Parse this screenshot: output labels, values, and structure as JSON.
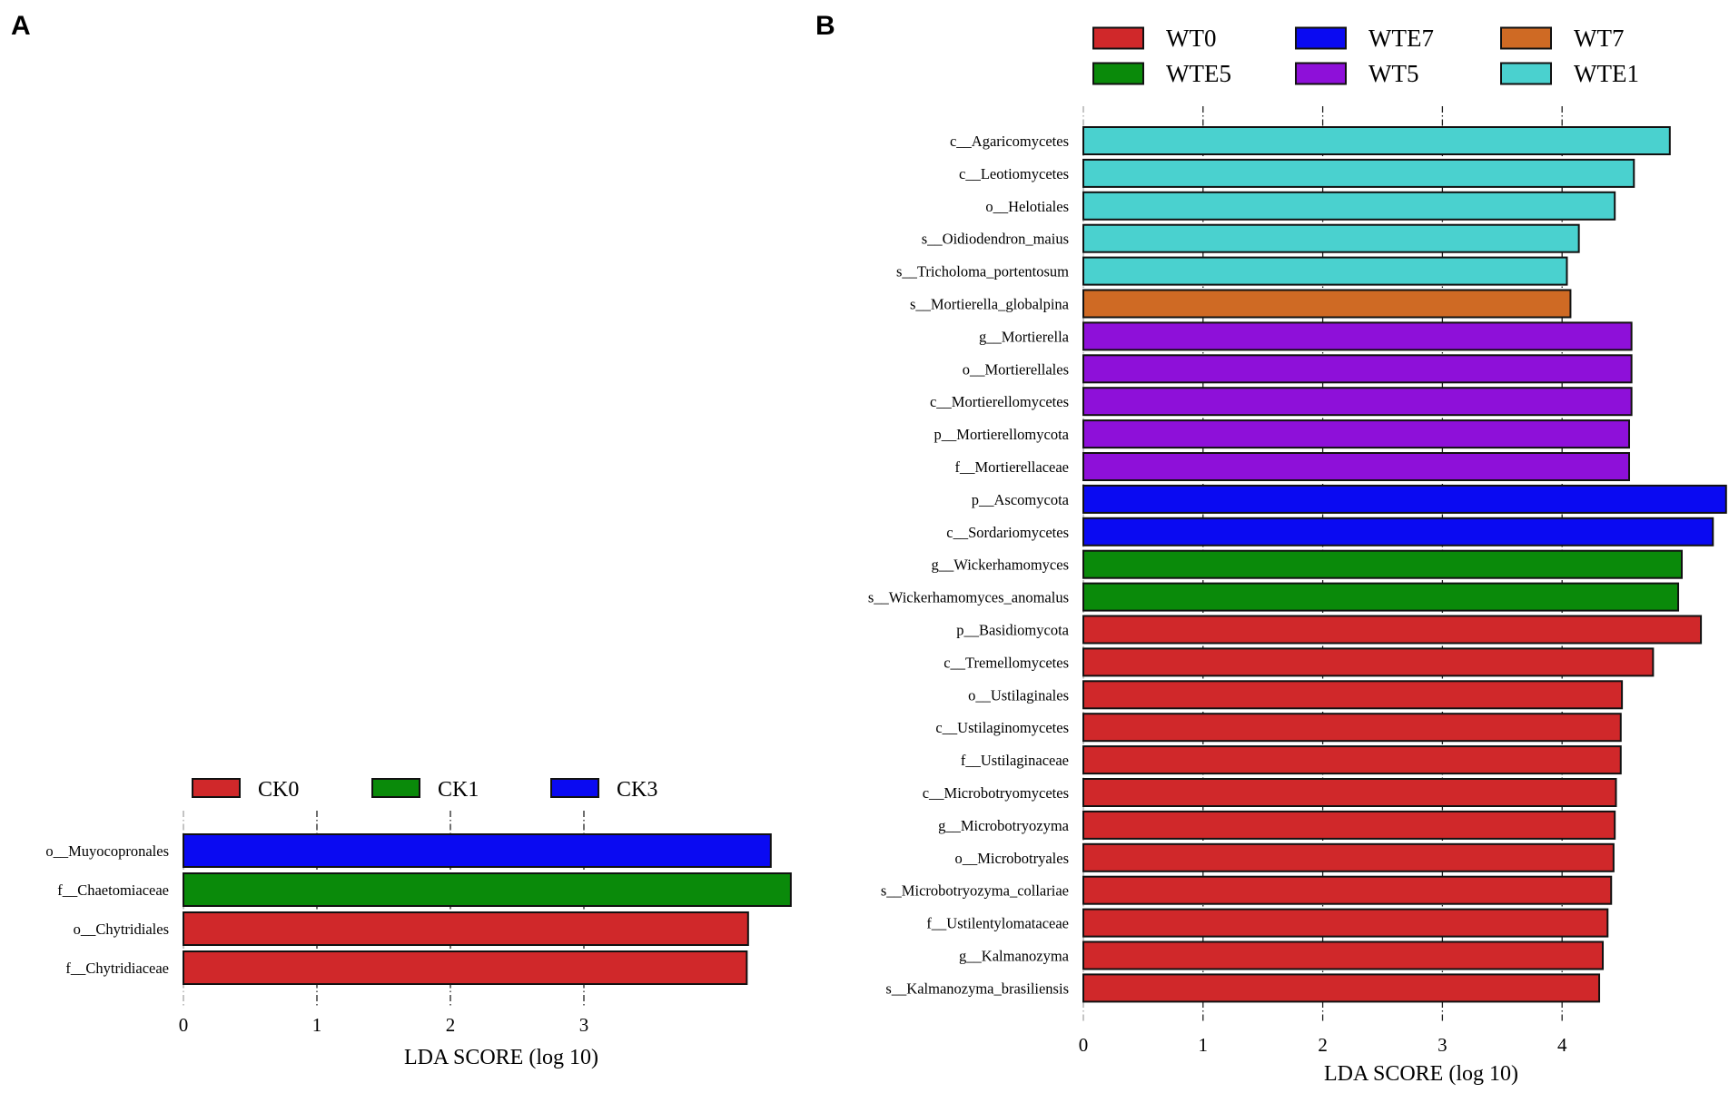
{
  "chart_data": [
    {
      "type": "bar",
      "orientation": "horizontal",
      "panel_label": "A",
      "xlabel": "LDA SCORE (log 10)",
      "x_ticks": [
        0,
        1,
        2,
        3
      ],
      "xlim": [
        0,
        4.55
      ],
      "legend": [
        {
          "name": "CK0",
          "color": "#d0282a"
        },
        {
          "name": "CK1",
          "color": "#0a8a0a"
        },
        {
          "name": "CK3",
          "color": "#0a0af2"
        }
      ],
      "bars": [
        {
          "label": "o__Muyocopronales",
          "value": 4.4,
          "group": "CK3"
        },
        {
          "label": "f__Chaetomiaceae",
          "value": 4.55,
          "group": "CK1"
        },
        {
          "label": "o__Chytridiales",
          "value": 4.23,
          "group": "CK0"
        },
        {
          "label": "f__Chytridiaceae",
          "value": 4.22,
          "group": "CK0"
        }
      ]
    },
    {
      "type": "bar",
      "orientation": "horizontal",
      "panel_label": "B",
      "xlabel": "LDA SCORE (log 10)",
      "x_ticks": [
        0,
        1,
        2,
        3,
        4
      ],
      "xlim": [
        0,
        5.37
      ],
      "legend": [
        {
          "name": "WT0",
          "color": "#d0282a"
        },
        {
          "name": "WTE7",
          "color": "#0a0af2"
        },
        {
          "name": "WT7",
          "color": "#cf6a24"
        },
        {
          "name": "WTE5",
          "color": "#0a8a0a"
        },
        {
          "name": "WT5",
          "color": "#8e10d9"
        },
        {
          "name": "WTE1",
          "color": "#4ad1cf"
        }
      ],
      "bars": [
        {
          "label": "c__Agaricomycetes",
          "value": 4.9,
          "group": "WTE1"
        },
        {
          "label": "c__Leotiomycetes",
          "value": 4.6,
          "group": "WTE1"
        },
        {
          "label": "o__Helotiales",
          "value": 4.44,
          "group": "WTE1"
        },
        {
          "label": "s__Oidiodendron_maius",
          "value": 4.14,
          "group": "WTE1"
        },
        {
          "label": "s__Tricholoma_portentosum",
          "value": 4.04,
          "group": "WTE1"
        },
        {
          "label": "s__Mortierella_globalpina",
          "value": 4.07,
          "group": "WT7"
        },
        {
          "label": "g__Mortierella",
          "value": 4.58,
          "group": "WT5"
        },
        {
          "label": "o__Mortierellales",
          "value": 4.58,
          "group": "WT5"
        },
        {
          "label": "c__Mortierellomycetes",
          "value": 4.58,
          "group": "WT5"
        },
        {
          "label": "p__Mortierellomycota",
          "value": 4.56,
          "group": "WT5"
        },
        {
          "label": "f__Mortierellaceae",
          "value": 4.56,
          "group": "WT5"
        },
        {
          "label": "p__Ascomycota",
          "value": 5.37,
          "group": "WTE7"
        },
        {
          "label": "c__Sordariomycetes",
          "value": 5.26,
          "group": "WTE7"
        },
        {
          "label": "g__Wickerhamomyces",
          "value": 5.0,
          "group": "WTE5"
        },
        {
          "label": "s__Wickerhamomyces_anomalus",
          "value": 4.97,
          "group": "WTE5"
        },
        {
          "label": "p__Basidiomycota",
          "value": 5.16,
          "group": "WT0"
        },
        {
          "label": "c__Tremellomycetes",
          "value": 4.76,
          "group": "WT0"
        },
        {
          "label": "o__Ustilaginales",
          "value": 4.5,
          "group": "WT0"
        },
        {
          "label": "c__Ustilaginomycetes",
          "value": 4.49,
          "group": "WT0"
        },
        {
          "label": "f__Ustilaginaceae",
          "value": 4.49,
          "group": "WT0"
        },
        {
          "label": "c__Microbotryomycetes",
          "value": 4.45,
          "group": "WT0"
        },
        {
          "label": "g__Microbotryozyma",
          "value": 4.44,
          "group": "WT0"
        },
        {
          "label": "o__Microbotryales",
          "value": 4.43,
          "group": "WT0"
        },
        {
          "label": "s__Microbotryozyma_collariae",
          "value": 4.41,
          "group": "WT0"
        },
        {
          "label": "f__Ustilentylomataceae",
          "value": 4.38,
          "group": "WT0"
        },
        {
          "label": "g__Kalmanozyma",
          "value": 4.34,
          "group": "WT0"
        },
        {
          "label": "s__Kalmanozyma_brasiliensis",
          "value": 4.31,
          "group": "WT0"
        }
      ]
    }
  ]
}
